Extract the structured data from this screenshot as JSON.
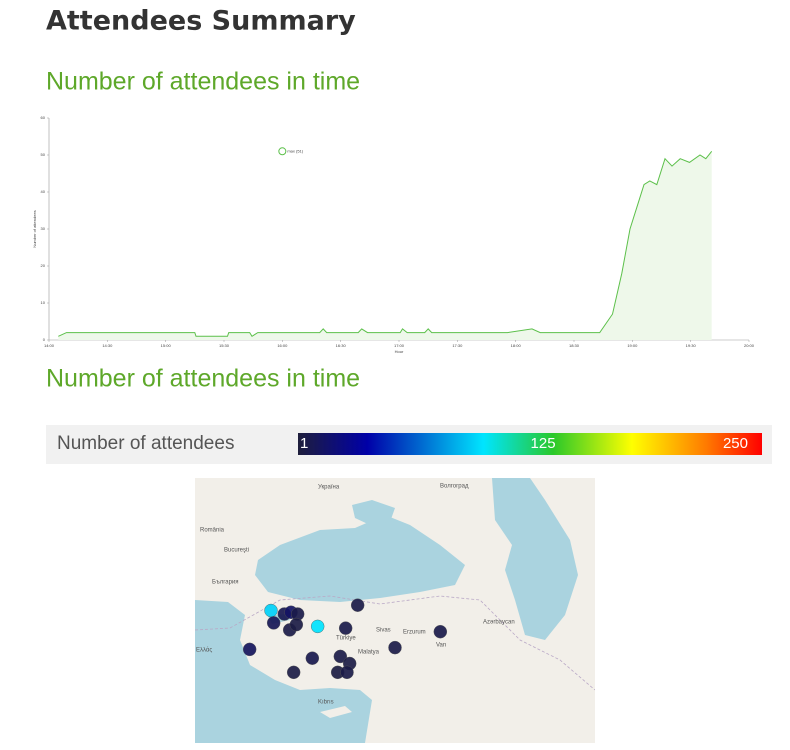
{
  "header": {
    "title": "Attendees Summary"
  },
  "sections": [
    "Number of attendees in time",
    "Number of attendees in time"
  ],
  "chart_data": {
    "type": "line",
    "x_label": "Hour",
    "y_label": "Number of attendees",
    "xlim": [
      14,
      20
    ],
    "ylim": [
      0,
      60
    ],
    "xticks": [
      {
        "value": 14,
        "label": "14:00"
      },
      {
        "value": 14.5,
        "label": "14:30"
      },
      {
        "value": 15,
        "label": "15:00"
      },
      {
        "value": 15.5,
        "label": "15:30"
      },
      {
        "value": 16,
        "label": "16:00"
      },
      {
        "value": 16.5,
        "label": "16:30"
      },
      {
        "value": 17,
        "label": "17:00"
      },
      {
        "value": 17.5,
        "label": "17:30"
      },
      {
        "value": 18,
        "label": "18:00"
      },
      {
        "value": 18.5,
        "label": "18:30"
      },
      {
        "value": 19,
        "label": "19:00"
      },
      {
        "value": 19.5,
        "label": "19:30"
      },
      {
        "value": 20,
        "label": "20:00"
      }
    ],
    "yticks": [
      0,
      10,
      20,
      30,
      40,
      50,
      60
    ],
    "series": [
      {
        "name": "attendees",
        "color": "#5cc04a",
        "fill": "#eef8ea",
        "x": [
          14.08,
          14.15,
          15.25,
          15.26,
          15.53,
          15.54,
          15.72,
          15.74,
          15.79,
          16.32,
          16.35,
          16.38,
          16.65,
          16.68,
          16.73,
          17.01,
          17.03,
          17.07,
          17.22,
          17.25,
          17.28,
          17.93,
          18.14,
          18.21,
          18.72,
          18.83,
          18.91,
          18.98,
          19.04,
          19.1,
          19.15,
          19.21,
          19.28,
          19.34,
          19.41,
          19.49,
          19.58,
          19.63,
          19.68
        ],
        "values": [
          1,
          2,
          2,
          1,
          1,
          2,
          2,
          1,
          2,
          2,
          3,
          2,
          2,
          3,
          2,
          2,
          3,
          2,
          2,
          3,
          2,
          2,
          3,
          2,
          2,
          7,
          18,
          30,
          36,
          42,
          43,
          42,
          49,
          47,
          49,
          48,
          50,
          49,
          51
        ]
      }
    ],
    "annotation": {
      "x": 16.0,
      "y": 51,
      "text": "max (51)"
    }
  },
  "colorbar": {
    "label": "Number of attendees",
    "range": [
      1,
      250
    ],
    "ticks": [
      1,
      125,
      250
    ],
    "colorscale": [
      [
        0,
        "#1e1e3c"
      ],
      [
        0.15,
        "#0000a8"
      ],
      [
        0.4,
        "#00e5ff"
      ],
      [
        0.55,
        "#2ac82a"
      ],
      [
        0.72,
        "#ffff00"
      ],
      [
        0.88,
        "#ff7a00"
      ],
      [
        1,
        "#ff0000"
      ]
    ]
  },
  "map": {
    "labels": [
      "Україна",
      "Волгоград",
      "România",
      "Bucureşti",
      "България",
      "Türkiye",
      "Sivas",
      "Erzurum",
      "Van",
      "Malatya",
      "Azərbaycan",
      "Ελλάς",
      "Kıbrıs"
    ],
    "points": [
      {
        "lon": 27.7,
        "lat": 41.5,
        "value": 95
      },
      {
        "lon": 31.2,
        "lat": 40.6,
        "value": 100
      },
      {
        "lon": 27.9,
        "lat": 40.8,
        "value": 10
      },
      {
        "lon": 28.7,
        "lat": 41.3,
        "value": 8
      },
      {
        "lon": 29.2,
        "lat": 41.4,
        "value": 15
      },
      {
        "lon": 29.7,
        "lat": 41.3,
        "value": 6
      },
      {
        "lon": 29.1,
        "lat": 40.4,
        "value": 5
      },
      {
        "lon": 29.6,
        "lat": 40.7,
        "value": 4
      },
      {
        "lon": 34.2,
        "lat": 41.8,
        "value": 5
      },
      {
        "lon": 33.3,
        "lat": 40.5,
        "value": 6
      },
      {
        "lon": 26.1,
        "lat": 39.3,
        "value": 12
      },
      {
        "lon": 30.8,
        "lat": 38.8,
        "value": 7
      },
      {
        "lon": 32.9,
        "lat": 38.9,
        "value": 5
      },
      {
        "lon": 33.6,
        "lat": 38.5,
        "value": 4
      },
      {
        "lon": 37.0,
        "lat": 39.4,
        "value": 5
      },
      {
        "lon": 40.4,
        "lat": 40.3,
        "value": 6
      },
      {
        "lon": 29.4,
        "lat": 38.0,
        "value": 4
      },
      {
        "lon": 32.7,
        "lat": 38.0,
        "value": 3
      },
      {
        "lon": 33.4,
        "lat": 38.0,
        "value": 5
      }
    ]
  }
}
